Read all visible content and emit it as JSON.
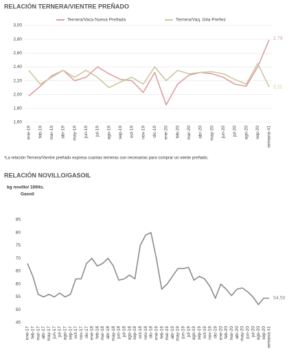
{
  "chart_data": [
    {
      "type": "line",
      "title": "RELACIÓN TERNERA/VIENTRE PREÑADO",
      "categories": [
        "ene-19",
        "feb-19",
        "mar-19",
        "abr-19",
        "may-19",
        "jun-19",
        "jul-19",
        "ago-19",
        "sep-19",
        "oct-19",
        "nov-19",
        "dic-19",
        "ene-20",
        "feb-20",
        "mar-20",
        "abr-20",
        "may-20",
        "jun-20",
        "jul-20",
        "ago-20",
        "sep-20",
        "semana 41"
      ],
      "series": [
        {
          "name": "Ternera/Vaca Nueva Preñada",
          "color": "#e09aa0",
          "values": [
            1.98,
            2.12,
            2.27,
            2.35,
            2.2,
            2.25,
            2.4,
            2.3,
            2.22,
            2.2,
            2.03,
            2.32,
            1.85,
            2.15,
            2.28,
            2.32,
            2.3,
            2.25,
            2.15,
            2.12,
            2.4,
            2.79
          ],
          "value_labels": [
            null,
            null,
            null,
            null,
            null,
            null,
            null,
            null,
            null,
            null,
            null,
            null,
            null,
            null,
            null,
            null,
            null,
            null,
            null,
            null,
            null,
            "2,79"
          ]
        },
        {
          "name": "Ternera/Vaq. Gtia Preñez",
          "color": "#cbc69c",
          "values": [
            2.35,
            2.15,
            2.25,
            2.35,
            2.25,
            2.35,
            2.25,
            2.1,
            2.18,
            2.25,
            2.15,
            2.4,
            2.2,
            2.35,
            2.3,
            2.32,
            2.33,
            2.3,
            2.22,
            2.15,
            2.45,
            2.11
          ],
          "value_labels": [
            null,
            null,
            null,
            null,
            null,
            null,
            null,
            null,
            null,
            null,
            null,
            null,
            null,
            null,
            null,
            null,
            null,
            null,
            null,
            null,
            null,
            "2,11"
          ]
        }
      ],
      "ylim": [
        1.6,
        3.0
      ],
      "yticks": [
        {
          "value": 1.6,
          "label": "1,60"
        },
        {
          "value": 1.8,
          "label": "1,80"
        },
        {
          "value": 2.0,
          "label": "2,00"
        },
        {
          "value": 2.2,
          "label": "2,20"
        },
        {
          "value": 2.4,
          "label": "2,40"
        },
        {
          "value": 2.6,
          "label": "2,60"
        },
        {
          "value": 2.8,
          "label": "2,80"
        },
        {
          "value": 3.0,
          "label": "3,00"
        }
      ],
      "grid": true,
      "legend": "top",
      "footnote": "¹La relación Ternera/Vientre preñado expresa cuantas terneras son necesarias para comprar un viente preñado."
    },
    {
      "type": "line",
      "title": "RELACIÓN NOVILLO/GASOIL",
      "ylabel": [
        "kg novillo/ 100lts.",
        "Gasoil"
      ],
      "categories": [
        "ene-17",
        "feb-17",
        "mar-17",
        "abr-17",
        "may-17",
        "jun-17",
        "jul-17",
        "ago-17",
        "sep-17",
        "oct-17",
        "nov-17",
        "dic-17",
        "ene-18",
        "feb-18",
        "mar-18",
        "abr-18",
        "may-18",
        "jun-18",
        "jul-18",
        "ago-18",
        "sep-18",
        "oct-18",
        "nov-18",
        "dic-18",
        "ene-19",
        "feb-19",
        "mar-19",
        "abr-19",
        "may-19",
        "jun-19",
        "jul-19",
        "ago-19",
        "sep-19",
        "oct-19",
        "nov-19",
        "dic-19",
        "ene-20",
        "feb-20",
        "mar-20",
        "abr-20",
        "may-20",
        "jun-20",
        "jul-20",
        "ago-20",
        "sep-20",
        "semana 41"
      ],
      "series": [
        {
          "color": "#8a8a8a",
          "values": [
            68,
            63,
            56,
            55,
            56,
            55,
            56.5,
            55,
            56,
            62,
            62,
            68,
            70,
            67,
            68,
            70,
            67,
            61.5,
            62,
            63.5,
            62,
            75,
            79,
            80,
            70,
            58,
            60,
            63,
            66,
            66,
            66.5,
            61.5,
            63,
            62,
            59,
            54.5,
            60,
            58,
            55.5,
            58,
            58.5,
            57,
            55,
            52,
            54.5,
            54.5
          ],
          "value_labels": [
            null,
            null,
            null,
            null,
            null,
            null,
            null,
            null,
            null,
            null,
            null,
            null,
            null,
            null,
            null,
            null,
            null,
            null,
            null,
            null,
            null,
            null,
            null,
            null,
            null,
            null,
            null,
            null,
            null,
            null,
            null,
            null,
            null,
            null,
            null,
            null,
            null,
            null,
            null,
            null,
            null,
            null,
            null,
            null,
            null,
            "54,50"
          ]
        }
      ],
      "ylim": [
        45,
        85
      ],
      "yticks": [
        45,
        50,
        55,
        60,
        65,
        70,
        75,
        80,
        85
      ],
      "grid": false
    }
  ]
}
